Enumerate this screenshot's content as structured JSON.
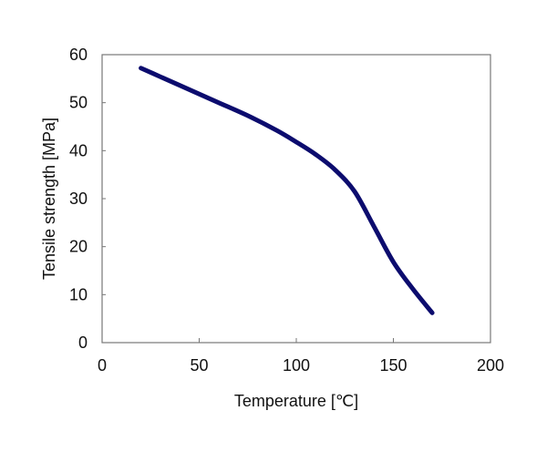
{
  "chart_data": {
    "type": "line",
    "title": "",
    "xlabel": "Temperature  [℃]",
    "ylabel": "Tensile strength  [MPa]",
    "xlim": [
      0,
      200
    ],
    "ylim": [
      0,
      60
    ],
    "xticks": [
      0,
      50,
      100,
      150,
      200
    ],
    "yticks": [
      0,
      10,
      20,
      30,
      40,
      50,
      60
    ],
    "grid": false,
    "series": [
      {
        "name": "Tensile strength",
        "color": "#0c0c6e",
        "x": [
          20,
          30,
          40,
          50,
          60,
          75,
          90,
          100,
          110,
          120,
          130,
          140,
          150,
          160,
          170
        ],
        "y": [
          57.2,
          55.4,
          53.6,
          51.8,
          50.0,
          47.3,
          44.2,
          41.8,
          39.2,
          36.0,
          31.5,
          24.2,
          16.8,
          11.2,
          6.2
        ]
      }
    ]
  }
}
